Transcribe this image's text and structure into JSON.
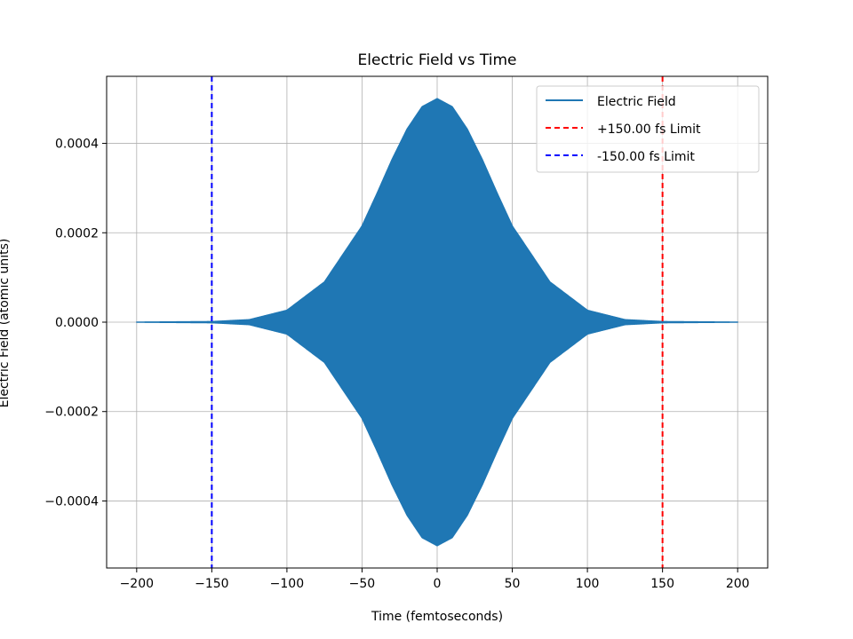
{
  "chart_data": {
    "type": "area",
    "title": "Electric Field vs Time",
    "xlabel": "Time (femtoseconds)",
    "ylabel": "Electric Field (atomic units)",
    "xlim": [
      -220,
      220
    ],
    "ylim": [
      -0.00055,
      0.00055
    ],
    "x_ticks": [
      -200,
      -150,
      -100,
      -50,
      0,
      50,
      100,
      150,
      200
    ],
    "x_tick_labels": [
      "−200",
      "−150",
      "−100",
      "−50",
      "0",
      "50",
      "100",
      "150",
      "200"
    ],
    "y_ticks": [
      -0.0004,
      -0.0002,
      0.0,
      0.0002,
      0.0004
    ],
    "y_tick_labels": [
      "−0.0004",
      "−0.0002",
      "0.0000",
      "0.0002",
      "0.0004"
    ],
    "grid": true,
    "legend_position": "top-right",
    "series": [
      {
        "name": "Electric Field",
        "kind": "oscillating-envelope",
        "x_range": [
          -200,
          200
        ],
        "envelope_x": [
          -200,
          -150,
          -125,
          -100,
          -75,
          -50,
          -40,
          -30,
          -20,
          -10,
          0,
          10,
          20,
          30,
          40,
          50,
          75,
          100,
          125,
          150,
          200
        ],
        "envelope_y": [
          0.0,
          1.2e-06,
          5.5e-06,
          2.65e-05,
          9e-05,
          0.000215,
          0.000288,
          0.000364,
          0.000432,
          0.000482,
          0.0005,
          0.000482,
          0.000432,
          0.000364,
          0.000288,
          0.000215,
          9e-05,
          2.65e-05,
          5.5e-06,
          1.2e-06,
          0.0
        ],
        "color": "#1f77b4"
      }
    ],
    "vlines": [
      {
        "name": "+150.00 fs Limit",
        "x": 150,
        "color": "#ff0000",
        "style": "dashed"
      },
      {
        "name": "-150.00 fs Limit",
        "x": -150,
        "color": "#0000ff",
        "style": "dashed"
      }
    ]
  }
}
